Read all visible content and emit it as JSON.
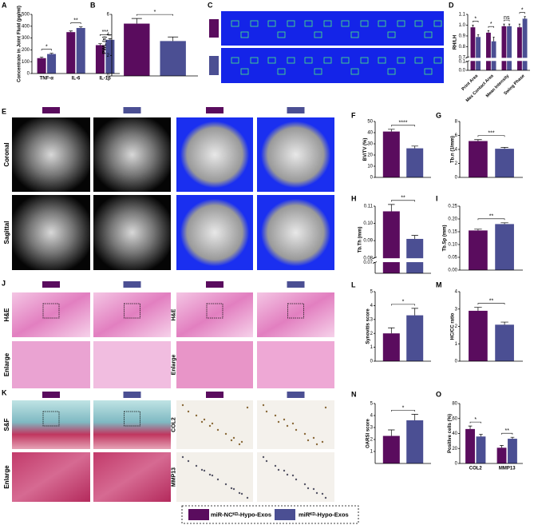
{
  "legend": {
    "items": [
      {
        "name": "miR-NCᴷᴰ-Hypo-Exos",
        "color": "#5a0c5e"
      },
      {
        "name": "miRᴷᴰ-Hypo-Exos",
        "color": "#4b4f93"
      }
    ]
  },
  "image_panels": [
    {
      "panel": "C"
    },
    {
      "panel": "E",
      "row_labels": [
        "Coronal",
        "Sagittal"
      ]
    },
    {
      "panel": "J",
      "row_labels": [
        "H&E",
        "Enlarge"
      ],
      "row_labels_right": [
        "H&E",
        "Enlarge"
      ]
    },
    {
      "panel": "K",
      "row_labels": [
        "S&F",
        "Enlarge"
      ],
      "row_labels_right": [
        "COL2",
        "MMP13"
      ]
    }
  ],
  "chart_data": [
    {
      "type": "bar",
      "panel": "A",
      "ylabel": "Concentrate in Joint Fluid (pg/ml)",
      "categories": [
        "TNF-α",
        "IL-6",
        "IL-1β"
      ],
      "series": [
        {
          "values": [
            130,
            350,
            240
          ],
          "errors": [
            8,
            10,
            12
          ]
        },
        {
          "values": [
            165,
            385,
            285
          ],
          "errors": [
            6,
            10,
            10
          ]
        }
      ],
      "ylim": [
        0,
        500
      ],
      "yticks": [
        0,
        100,
        200,
        300,
        400,
        500
      ],
      "significance": [
        "*",
        "**",
        "***"
      ]
    },
    {
      "type": "bar",
      "panel": "B",
      "ylabel": "PWL (s)",
      "series": [
        {
          "values": [
            5.1
          ],
          "errors": [
            0.5
          ]
        },
        {
          "values": [
            3.4
          ],
          "errors": [
            0.4
          ]
        }
      ],
      "ylim": [
        0,
        6
      ],
      "yticks": [
        0,
        2,
        4,
        6
      ],
      "significance": [
        "*"
      ]
    },
    {
      "type": "bar",
      "panel": "D",
      "ylabel": "RH/LH",
      "categories": [
        "Print Area",
        "Max Contact Area",
        "Mean Intensity",
        "Swing Phase"
      ],
      "xlabel_rotation": -45,
      "series": [
        {
          "values": [
            0.98,
            0.93,
            0.99,
            0.98
          ],
          "errors": [
            0.02,
            0.02,
            0.02,
            0.03
          ]
        },
        {
          "values": [
            0.89,
            0.85,
            0.99,
            1.06
          ],
          "errors": [
            0.02,
            0.04,
            0.02,
            0.02
          ]
        }
      ],
      "ylim": [
        0,
        1.1
      ],
      "ybreak": [
        0.1,
        0.7
      ],
      "yticks": [
        {
          "value": 0,
          "label": "0.0"
        },
        0.1,
        0.7,
        0.8,
        0.9,
        {
          "value": 1,
          "label": "1.0"
        },
        1.1
      ],
      "significance": [
        "*",
        "*",
        "ns",
        "*"
      ]
    },
    {
      "type": "bar",
      "panel": "F",
      "ylabel": "BV/TV (%)",
      "series": [
        {
          "values": [
            41
          ],
          "errors": [
            2
          ]
        },
        {
          "values": [
            26
          ],
          "errors": [
            2
          ]
        }
      ],
      "ylim": [
        0,
        50
      ],
      "yticks": [
        0,
        10,
        20,
        30,
        40,
        50
      ],
      "significance": [
        "****"
      ]
    },
    {
      "type": "bar",
      "panel": "G",
      "ylabel": "Tb.n (1/mm)",
      "series": [
        {
          "values": [
            5.2
          ],
          "errors": [
            0.2
          ]
        },
        {
          "values": [
            4.1
          ],
          "errors": [
            0.2
          ]
        }
      ],
      "ylim": [
        0,
        8
      ],
      "yticks": [
        0,
        2,
        4,
        6,
        8
      ],
      "significance": [
        "***"
      ]
    },
    {
      "type": "bar",
      "panel": "H",
      "ylabel": "Tb.Th (mm)",
      "series": [
        {
          "values": [
            0.107
          ],
          "errors": [
            0.004
          ]
        },
        {
          "values": [
            0.091
          ],
          "errors": [
            0.002
          ]
        }
      ],
      "ylim": [
        0,
        0.11
      ],
      "ybreak": [
        0.07,
        0.08
      ],
      "yticks": [
        0.07,
        0.08,
        0.09,
        {
          "value": 0.1,
          "label": "0.10"
        },
        0.11
      ],
      "significance": [
        "**"
      ]
    },
    {
      "type": "bar",
      "panel": "I",
      "ylabel": "Tb.Sp (mm)",
      "series": [
        {
          "values": [
            0.155
          ],
          "errors": [
            0.005
          ]
        },
        {
          "values": [
            0.18
          ],
          "errors": [
            0.005
          ]
        }
      ],
      "ylim": [
        0,
        0.25
      ],
      "yticks": [
        {
          "value": 0,
          "label": "0.00"
        },
        0.05,
        {
          "value": 0.1,
          "label": "0.10"
        },
        0.15,
        {
          "value": 0.2,
          "label": "0.20"
        },
        0.25
      ],
      "significance": [
        "**"
      ]
    },
    {
      "type": "bar",
      "panel": "L",
      "ylabel": "Synovitis score",
      "series": [
        {
          "values": [
            2.0
          ],
          "errors": [
            0.4
          ]
        },
        {
          "values": [
            3.3
          ],
          "errors": [
            0.5
          ]
        }
      ],
      "ylim": [
        0,
        5
      ],
      "yticks": [
        0,
        1,
        2,
        3,
        4,
        5
      ],
      "significance": [
        "*"
      ]
    },
    {
      "type": "bar",
      "panel": "M",
      "ylabel": "HC/CC ratio",
      "series": [
        {
          "values": [
            2.9
          ],
          "errors": [
            0.2
          ]
        },
        {
          "values": [
            2.1
          ],
          "errors": [
            0.15
          ]
        }
      ],
      "ylim": [
        0,
        4
      ],
      "yticks": [
        0,
        1,
        2,
        3,
        4
      ],
      "significance": [
        "**"
      ]
    },
    {
      "type": "bar",
      "panel": "N",
      "ylabel": "OARSI score",
      "series": [
        {
          "values": [
            2.3
          ],
          "errors": [
            0.5
          ]
        },
        {
          "values": [
            3.6
          ],
          "errors": [
            0.5
          ]
        }
      ],
      "ylim": [
        0,
        5
      ],
      "yticks": [
        1,
        2,
        3,
        4,
        5
      ],
      "significance": [
        "*"
      ]
    },
    {
      "type": "bar",
      "panel": "O",
      "ylabel": "Positive cells (%)",
      "categories": [
        "COL2",
        "MMP13"
      ],
      "series": [
        {
          "values": [
            46,
            21
          ],
          "errors": [
            4,
            3
          ]
        },
        {
          "values": [
            36,
            33
          ],
          "errors": [
            3,
            2
          ]
        }
      ],
      "ylim": [
        0,
        80
      ],
      "yticks": [
        0,
        20,
        40,
        60,
        80
      ],
      "significance": [
        "*",
        "**"
      ]
    }
  ]
}
